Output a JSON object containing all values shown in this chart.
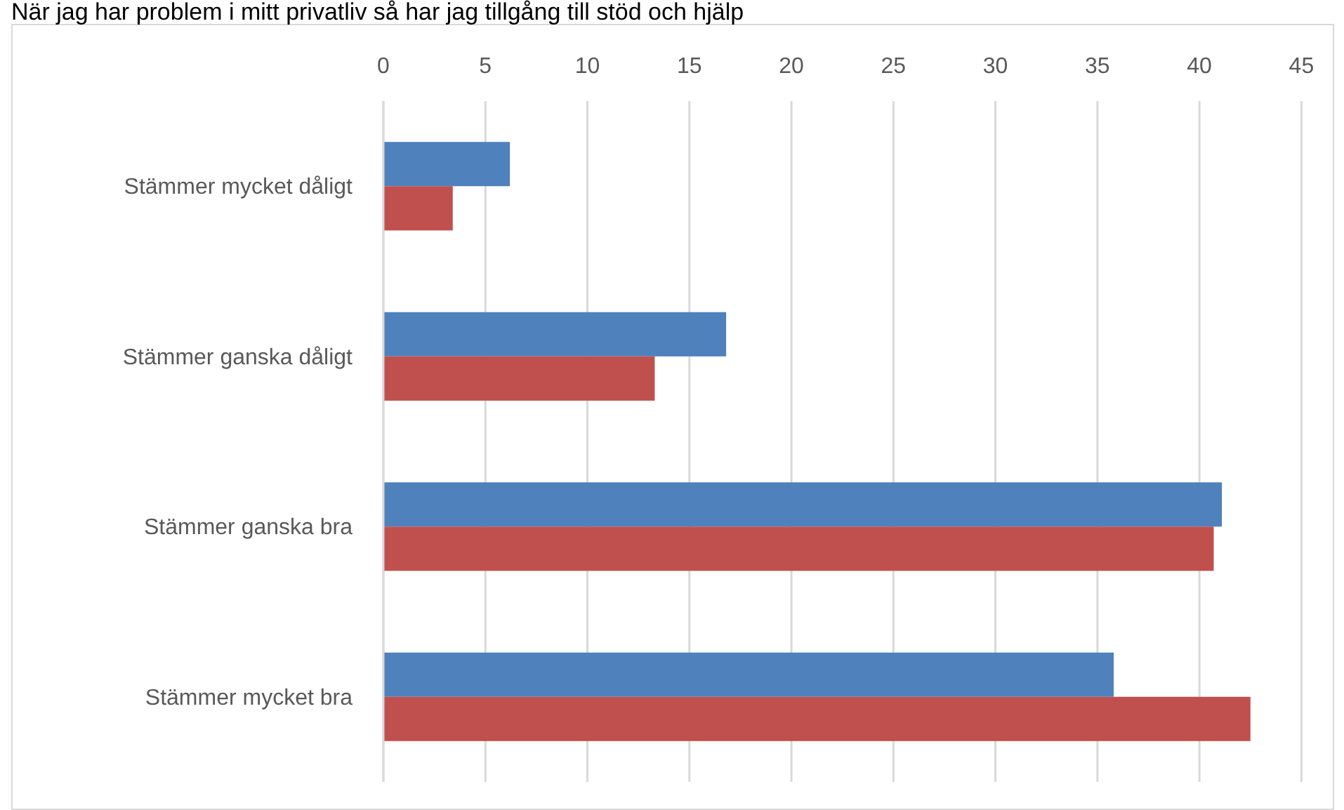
{
  "chart_data": {
    "type": "bar",
    "orientation": "horizontal",
    "title": "När jag har problem i mitt privatliv så har jag tillgång till stöd och hjälp",
    "categories": [
      "Stämmer mycket dåligt",
      "Stämmer ganska dåligt",
      "Stämmer ganska bra",
      "Stämmer mycket bra"
    ],
    "series": [
      {
        "color": "#4f81bd",
        "values": [
          6.2,
          16.8,
          41.1,
          35.8
        ]
      },
      {
        "color": "#c0504d",
        "values": [
          3.4,
          13.3,
          40.7,
          42.5
        ]
      }
    ],
    "xlim": [
      0,
      45
    ],
    "xticks": [
      0,
      5,
      10,
      15,
      20,
      25,
      30,
      35,
      40,
      45
    ],
    "grid": "x"
  }
}
